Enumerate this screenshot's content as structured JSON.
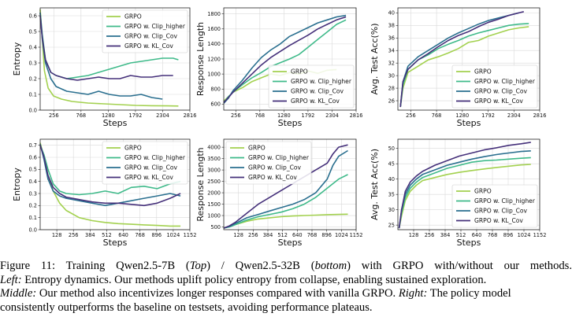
{
  "figure": {
    "caption": {
      "fig_label": "Figure 11:",
      "seg1": "Training Qwen2.5-7B (",
      "top": "Top",
      "seg2": ") / Qwen2.5-32B (",
      "bottom": "bottom",
      "seg3": ") with GRPO with/without our methods.",
      "left_label": "Left:",
      "left_text": "Entropy dynamics. Our methods uplift policy entropy from collapse, enabling sustained exploration.",
      "middle_label": "Middle:",
      "middle_text": "Our method also incentivizes longer responses compared with vanilla GRPO.",
      "right_label": "Right:",
      "right_text": "The policy model",
      "line4": "consistently outperforms the baseline on testsets, avoiding performance plateaus."
    }
  },
  "colors": {
    "GRPO": "#a3d14f",
    "GRPO w. Clip_higher": "#3fba8a",
    "GRPO w. Clip_Cov": "#2a6f8f",
    "GRPO w. KL_Cov": "#45307a"
  },
  "chart_data": [
    {
      "id": "top-left",
      "type": "line",
      "xlabel": "Steps",
      "ylabel": "Entropy",
      "xlim": [
        0,
        2816
      ],
      "ylim": [
        0,
        0.65
      ],
      "xticks": [
        256,
        768,
        1280,
        1792,
        2304,
        2816
      ],
      "yticks": [
        0.0,
        0.1,
        0.2,
        0.3,
        0.4,
        0.5,
        0.6
      ],
      "legend": "top-right",
      "series": [
        {
          "name": "GRPO",
          "x": [
            0,
            30,
            80,
            150,
            250,
            400,
            600,
            900,
            1200,
            1500,
            1800,
            2100,
            2400,
            2600
          ],
          "y": [
            0.64,
            0.5,
            0.25,
            0.14,
            0.09,
            0.07,
            0.055,
            0.045,
            0.04,
            0.035,
            0.03,
            0.028,
            0.027,
            0.026
          ]
        },
        {
          "name": "GRPO w. Clip_higher",
          "x": [
            0,
            40,
            100,
            200,
            300,
            500,
            700,
            900,
            1100,
            1300,
            1500,
            1700,
            1900,
            2100,
            2300,
            2500,
            2600
          ],
          "y": [
            0.62,
            0.48,
            0.32,
            0.24,
            0.22,
            0.2,
            0.21,
            0.22,
            0.24,
            0.26,
            0.28,
            0.3,
            0.31,
            0.32,
            0.33,
            0.33,
            0.32
          ]
        },
        {
          "name": "GRPO w. Clip_Cov",
          "x": [
            0,
            40,
            100,
            200,
            300,
            500,
            700,
            900,
            1100,
            1300,
            1500,
            1700,
            1900,
            2100,
            2300
          ],
          "y": [
            0.62,
            0.45,
            0.3,
            0.2,
            0.15,
            0.12,
            0.11,
            0.1,
            0.12,
            0.1,
            0.09,
            0.09,
            0.1,
            0.08,
            0.07
          ]
        },
        {
          "name": "GRPO w. KL_Cov",
          "x": [
            0,
            40,
            100,
            200,
            300,
            500,
            700,
            900,
            1100,
            1300,
            1500,
            1700,
            1900,
            2100,
            2300,
            2500
          ],
          "y": [
            0.6,
            0.46,
            0.32,
            0.24,
            0.22,
            0.2,
            0.19,
            0.2,
            0.21,
            0.2,
            0.2,
            0.22,
            0.21,
            0.21,
            0.22,
            0.22
          ]
        }
      ]
    },
    {
      "id": "top-mid",
      "type": "line",
      "xlabel": "Steps",
      "ylabel": "Response Length",
      "xlim": [
        0,
        2816
      ],
      "ylim": [
        520,
        1880
      ],
      "xticks": [
        256,
        768,
        1280,
        1792,
        2304,
        2816
      ],
      "yticks": [
        600,
        800,
        1000,
        1200,
        1400,
        1600,
        1800
      ],
      "legend": "bottom-right",
      "series": [
        {
          "name": "GRPO",
          "x": [
            0,
            100,
            200,
            400,
            600,
            800,
            1000,
            1200,
            1400,
            1600,
            1800,
            2000,
            2200,
            2400
          ],
          "y": [
            640,
            700,
            760,
            820,
            900,
            950,
            1000,
            980,
            1020,
            1000,
            1040,
            1010,
            1050,
            1060
          ]
        },
        {
          "name": "GRPO w. Clip_higher",
          "x": [
            0,
            100,
            200,
            400,
            600,
            800,
            1000,
            1200,
            1400,
            1600,
            1800,
            2000,
            2200,
            2400,
            2600
          ],
          "y": [
            620,
            700,
            760,
            860,
            950,
            1020,
            1100,
            1150,
            1200,
            1260,
            1360,
            1460,
            1560,
            1660,
            1720
          ]
        },
        {
          "name": "GRPO w. Clip_Cov",
          "x": [
            0,
            100,
            200,
            400,
            600,
            800,
            1000,
            1200,
            1400,
            1600,
            1800,
            2000,
            2200,
            2400,
            2600
          ],
          "y": [
            610,
            680,
            780,
            920,
            1080,
            1220,
            1320,
            1400,
            1500,
            1560,
            1620,
            1680,
            1720,
            1760,
            1780
          ]
        },
        {
          "name": "GRPO w. KL_Cov",
          "x": [
            0,
            100,
            200,
            400,
            600,
            800,
            1000,
            1200,
            1400,
            1600,
            1800,
            2000,
            2200,
            2400,
            2600
          ],
          "y": [
            620,
            690,
            760,
            880,
            1000,
            1120,
            1220,
            1300,
            1380,
            1450,
            1520,
            1600,
            1660,
            1720,
            1760
          ]
        }
      ]
    },
    {
      "id": "top-right",
      "type": "line",
      "xlabel": "Steps",
      "ylabel": "Avg. Test Acc(%)",
      "xlim": [
        0,
        2816
      ],
      "ylim": [
        24.5,
        40.8
      ],
      "xticks": [
        256,
        768,
        1280,
        1792,
        2304,
        2816
      ],
      "yticks": [
        26,
        28,
        30,
        32,
        34,
        36,
        38,
        40
      ],
      "legend": "bottom-right",
      "series": [
        {
          "name": "GRPO",
          "x": [
            50,
            100,
            200,
            400,
            600,
            800,
            1000,
            1200,
            1400,
            1600,
            1800,
            2000,
            2200,
            2400,
            2600
          ],
          "y": [
            25,
            28,
            30.5,
            31.5,
            32.5,
            33,
            33.6,
            34.3,
            35.3,
            35.6,
            36.3,
            36.8,
            37.3,
            37.6,
            37.8
          ]
        },
        {
          "name": "GRPO w. Clip_higher",
          "x": [
            50,
            100,
            200,
            400,
            600,
            800,
            1000,
            1200,
            1400,
            1600,
            1800,
            2000,
            2200,
            2400,
            2600
          ],
          "y": [
            25,
            28.5,
            31,
            32.5,
            33.3,
            34.3,
            35,
            35.6,
            36.3,
            36.8,
            37.2,
            37.6,
            38,
            38.2,
            38.3
          ]
        },
        {
          "name": "GRPO w. Clip_Cov",
          "x": [
            50,
            100,
            200,
            400,
            600,
            800,
            1000,
            1200,
            1400,
            1600,
            1800,
            2000,
            2200,
            2400
          ],
          "y": [
            25,
            29,
            31.5,
            33,
            34,
            35,
            36,
            36.8,
            37.5,
            38.2,
            38.8,
            39.2,
            39.6,
            40
          ]
        },
        {
          "name": "GRPO w. KL_Cov",
          "x": [
            50,
            100,
            200,
            400,
            600,
            800,
            1000,
            1200,
            1400,
            1600,
            1800,
            2000,
            2200,
            2400,
            2500
          ],
          "y": [
            25,
            29,
            31,
            32.5,
            33.5,
            34.6,
            35.6,
            36.4,
            37,
            37.8,
            38.5,
            39,
            39.6,
            40,
            40.2
          ]
        }
      ]
    },
    {
      "id": "bot-left",
      "type": "line",
      "xlabel": "Steps",
      "ylabel": "Entropy",
      "xlim": [
        0,
        1152
      ],
      "ylim": [
        0,
        0.75
      ],
      "xticks": [
        128,
        256,
        384,
        512,
        640,
        768,
        896,
        1024,
        1152
      ],
      "yticks": [
        0.0,
        0.1,
        0.2,
        0.3,
        0.4,
        0.5,
        0.6,
        0.7
      ],
      "legend": "top-right",
      "series": [
        {
          "name": "GRPO",
          "x": [
            0,
            30,
            60,
            100,
            150,
            200,
            300,
            400,
            500,
            600,
            700,
            800,
            900,
            1000,
            1080
          ],
          "y": [
            0.72,
            0.6,
            0.45,
            0.32,
            0.22,
            0.16,
            0.1,
            0.075,
            0.06,
            0.05,
            0.045,
            0.04,
            0.035,
            0.03,
            0.03
          ]
        },
        {
          "name": "GRPO w. Clip_higher",
          "x": [
            0,
            30,
            60,
            100,
            150,
            200,
            300,
            400,
            500,
            600,
            700,
            800,
            900,
            1000,
            1080
          ],
          "y": [
            0.7,
            0.62,
            0.5,
            0.38,
            0.32,
            0.3,
            0.29,
            0.3,
            0.32,
            0.3,
            0.35,
            0.36,
            0.34,
            0.38,
            0.4
          ]
        },
        {
          "name": "GRPO w. Clip_Cov",
          "x": [
            0,
            30,
            60,
            100,
            150,
            200,
            300,
            400,
            500,
            600,
            700,
            800,
            900,
            1000,
            1080
          ],
          "y": [
            0.71,
            0.58,
            0.42,
            0.32,
            0.28,
            0.26,
            0.24,
            0.22,
            0.2,
            0.22,
            0.24,
            0.26,
            0.28,
            0.3,
            0.28
          ]
        },
        {
          "name": "GRPO w. KL_Cov",
          "x": [
            0,
            30,
            60,
            100,
            150,
            200,
            300,
            400,
            500,
            600,
            700,
            800,
            900,
            1000,
            1080
          ],
          "y": [
            0.7,
            0.6,
            0.45,
            0.35,
            0.3,
            0.27,
            0.25,
            0.23,
            0.22,
            0.22,
            0.21,
            0.2,
            0.22,
            0.26,
            0.3
          ]
        }
      ]
    },
    {
      "id": "bot-mid",
      "type": "line",
      "xlabel": "Steps",
      "ylabel": "Response Length",
      "xlim": [
        0,
        1152
      ],
      "ylim": [
        380,
        4350
      ],
      "xticks": [
        128,
        256,
        384,
        512,
        640,
        768,
        896,
        1024,
        1152
      ],
      "yticks": [
        500,
        1000,
        1500,
        2000,
        2500,
        3000,
        3500,
        4000
      ],
      "legend": "top-left",
      "series": [
        {
          "name": "GRPO",
          "x": [
            0,
            50,
            100,
            200,
            300,
            400,
            500,
            600,
            700,
            800,
            900,
            1000,
            1080
          ],
          "y": [
            450,
            520,
            600,
            750,
            850,
            900,
            950,
            980,
            1000,
            1020,
            1040,
            1050,
            1060
          ]
        },
        {
          "name": "GRPO w. Clip_higher",
          "x": [
            0,
            50,
            100,
            200,
            300,
            400,
            500,
            600,
            700,
            800,
            900,
            1000,
            1080
          ],
          "y": [
            450,
            500,
            600,
            800,
            950,
            1050,
            1150,
            1300,
            1500,
            1800,
            2200,
            2600,
            2800
          ]
        },
        {
          "name": "GRPO w. Clip_Cov",
          "x": [
            0,
            50,
            100,
            200,
            300,
            400,
            500,
            600,
            700,
            800,
            900,
            950,
            1000,
            1080
          ],
          "y": [
            450,
            520,
            650,
            900,
            1050,
            1200,
            1350,
            1500,
            1700,
            2000,
            2600,
            3200,
            3600,
            3850
          ]
        },
        {
          "name": "GRPO w. KL_Cov",
          "x": [
            0,
            50,
            100,
            200,
            300,
            400,
            500,
            600,
            700,
            800,
            900,
            950,
            1000,
            1080
          ],
          "y": [
            450,
            550,
            700,
            1100,
            1500,
            1800,
            2100,
            2400,
            2700,
            3000,
            3300,
            3700,
            4000,
            4100
          ]
        }
      ]
    },
    {
      "id": "bot-right",
      "type": "line",
      "xlabel": "Steps",
      "ylabel": "Avg. Test Acc(%)",
      "xlim": [
        0,
        1152
      ],
      "ylim": [
        23.5,
        53
      ],
      "xticks": [
        128,
        256,
        384,
        512,
        640,
        768,
        896,
        1024,
        1152
      ],
      "yticks": [
        25,
        30,
        35,
        40,
        45,
        50
      ],
      "legend": "bottom-right",
      "series": [
        {
          "name": "GRPO",
          "x": [
            10,
            30,
            60,
            100,
            150,
            200,
            300,
            400,
            500,
            600,
            700,
            800,
            900,
            1000,
            1080
          ],
          "y": [
            24,
            28,
            33,
            36,
            38,
            39.5,
            40.5,
            41.5,
            42.2,
            42.8,
            43.3,
            43.8,
            44.2,
            44.6,
            44.8
          ]
        },
        {
          "name": "GRPO w. Clip_higher",
          "x": [
            10,
            30,
            60,
            100,
            150,
            200,
            300,
            400,
            500,
            600,
            700,
            800,
            900,
            1000,
            1080
          ],
          "y": [
            24,
            29,
            34,
            37,
            39,
            40.5,
            42,
            43.5,
            44.5,
            45.5,
            46,
            46.2,
            46.5,
            46.8,
            47
          ]
        },
        {
          "name": "GRPO w. Clip_Cov",
          "x": [
            10,
            30,
            60,
            100,
            150,
            200,
            300,
            400,
            500,
            600,
            700,
            800,
            900,
            1000,
            1080
          ],
          "y": [
            24,
            30,
            35,
            38,
            40,
            41.5,
            43,
            44.5,
            45.5,
            46.5,
            47.3,
            48,
            48.5,
            49,
            49.2
          ]
        },
        {
          "name": "GRPO w. KL_Cov",
          "x": [
            10,
            30,
            60,
            100,
            150,
            200,
            300,
            400,
            500,
            600,
            700,
            800,
            900,
            1000,
            1080
          ],
          "y": [
            24,
            30,
            36,
            39,
            41,
            42.5,
            44.5,
            46,
            47.5,
            48.5,
            49.5,
            50.2,
            51,
            51.5,
            52
          ]
        }
      ]
    }
  ]
}
